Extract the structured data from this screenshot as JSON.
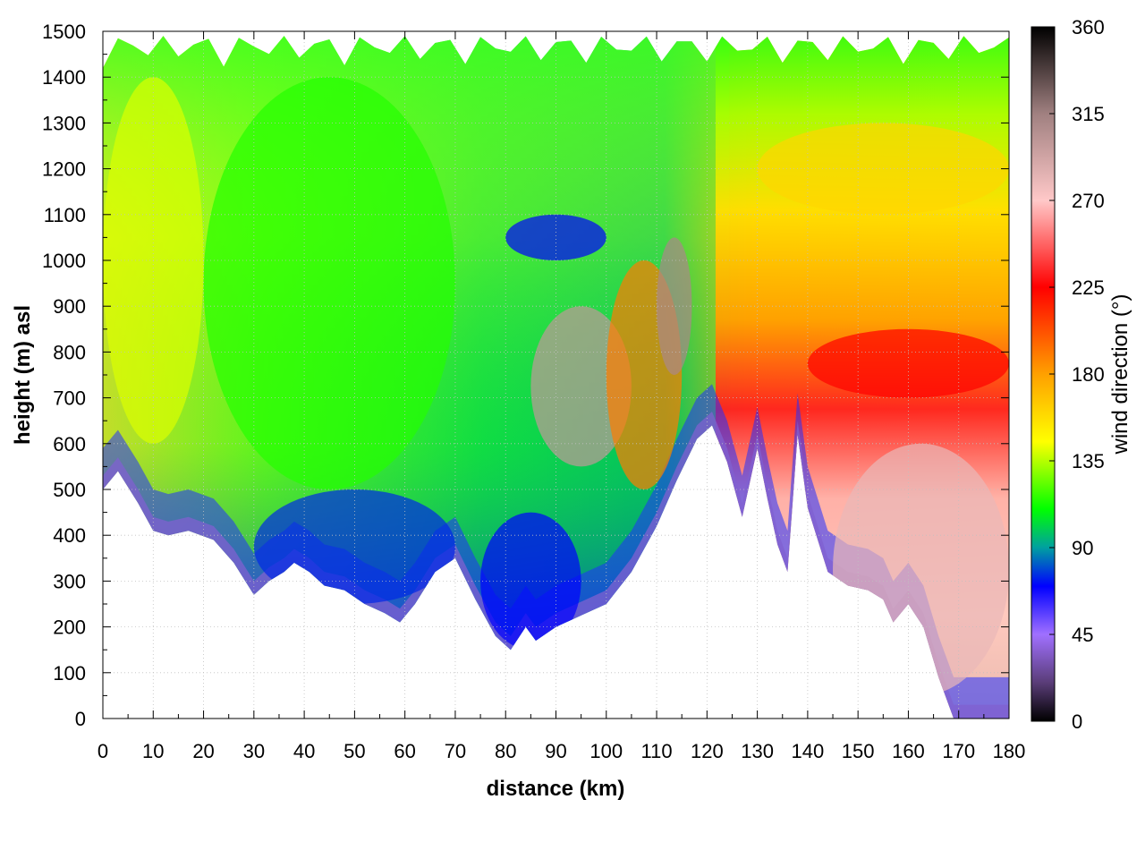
{
  "chart_data": {
    "type": "heatmap",
    "xlabel": "distance (km)",
    "ylabel": "height (m) asl",
    "colorbar_label": "wind direction (°)",
    "xlim": [
      0,
      180
    ],
    "ylim": [
      0,
      1500
    ],
    "clim": [
      0,
      360
    ],
    "x_ticks": [
      0,
      10,
      20,
      30,
      40,
      50,
      60,
      70,
      80,
      90,
      100,
      110,
      120,
      130,
      140,
      150,
      160,
      170,
      180
    ],
    "y_ticks": [
      0,
      100,
      200,
      300,
      400,
      500,
      600,
      700,
      800,
      900,
      1000,
      1100,
      1200,
      1300,
      1400,
      1500
    ],
    "colorbar_ticks": [
      0,
      45,
      90,
      135,
      180,
      225,
      270,
      315,
      360
    ],
    "grid": true,
    "colormap": [
      {
        "v": 0,
        "color": "#000000"
      },
      {
        "v": 20,
        "color": "#5a3d78"
      },
      {
        "v": 45,
        "color": "#a070ff"
      },
      {
        "v": 70,
        "color": "#0000ff"
      },
      {
        "v": 90,
        "color": "#00a0a0"
      },
      {
        "v": 110,
        "color": "#00ff00"
      },
      {
        "v": 145,
        "color": "#ffff00"
      },
      {
        "v": 180,
        "color": "#ffa000"
      },
      {
        "v": 225,
        "color": "#ff0000"
      },
      {
        "v": 270,
        "color": "#ffc8c8"
      },
      {
        "v": 315,
        "color": "#a08080"
      },
      {
        "v": 360,
        "color": "#000000"
      }
    ],
    "terrain": [
      [
        0,
        500
      ],
      [
        3,
        540
      ],
      [
        7,
        470
      ],
      [
        10,
        410
      ],
      [
        13,
        400
      ],
      [
        17,
        410
      ],
      [
        22,
        390
      ],
      [
        26,
        340
      ],
      [
        30,
        270
      ],
      [
        33,
        300
      ],
      [
        36,
        320
      ],
      [
        38,
        340
      ],
      [
        41,
        320
      ],
      [
        44,
        290
      ],
      [
        48,
        280
      ],
      [
        52,
        250
      ],
      [
        56,
        230
      ],
      [
        59,
        210
      ],
      [
        62,
        250
      ],
      [
        66,
        320
      ],
      [
        70,
        350
      ],
      [
        74,
        260
      ],
      [
        78,
        180
      ],
      [
        81,
        150
      ],
      [
        84,
        200
      ],
      [
        86,
        170
      ],
      [
        90,
        200
      ],
      [
        95,
        225
      ],
      [
        100,
        250
      ],
      [
        105,
        320
      ],
      [
        110,
        420
      ],
      [
        114,
        520
      ],
      [
        118,
        610
      ],
      [
        121,
        640
      ],
      [
        124,
        560
      ],
      [
        127,
        440
      ],
      [
        130,
        590
      ],
      [
        132,
        480
      ],
      [
        134,
        380
      ],
      [
        136,
        320
      ],
      [
        138,
        620
      ],
      [
        140,
        460
      ],
      [
        144,
        320
      ],
      [
        148,
        290
      ],
      [
        152,
        280
      ],
      [
        155,
        260
      ],
      [
        157,
        210
      ],
      [
        160,
        250
      ],
      [
        163,
        200
      ],
      [
        166,
        90
      ],
      [
        169,
        0
      ],
      [
        175,
        0
      ],
      [
        180,
        0
      ]
    ],
    "field_samples": [
      {
        "x": [
          0,
          20
        ],
        "y": [
          600,
          1400
        ],
        "value": 140
      },
      {
        "x": [
          20,
          70
        ],
        "y": [
          500,
          1400
        ],
        "value": 115
      },
      {
        "x": [
          30,
          70
        ],
        "y": [
          250,
          500
        ],
        "value": 75
      },
      {
        "x": [
          75,
          95
        ],
        "y": [
          150,
          450
        ],
        "value": 70
      },
      {
        "x": [
          80,
          100
        ],
        "y": [
          1000,
          1100
        ],
        "value": 70
      },
      {
        "x": [
          85,
          105
        ],
        "y": [
          550,
          900
        ],
        "value": 300
      },
      {
        "x": [
          100,
          115
        ],
        "y": [
          500,
          1000
        ],
        "value": 190
      },
      {
        "x": [
          110,
          117
        ],
        "y": [
          750,
          1050
        ],
        "value": 310
      },
      {
        "x": [
          130,
          180
        ],
        "y": [
          1100,
          1300
        ],
        "value": 160
      },
      {
        "x": [
          140,
          180
        ],
        "y": [
          700,
          850
        ],
        "value": 225
      },
      {
        "x": [
          145,
          180
        ],
        "y": [
          50,
          600
        ],
        "value": 280
      }
    ]
  }
}
